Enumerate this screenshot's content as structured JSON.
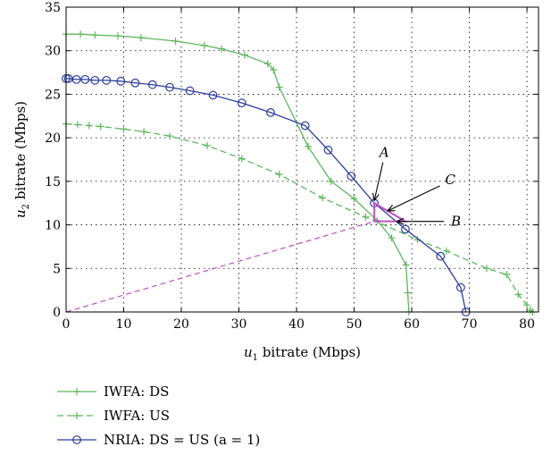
{
  "chart_data": {
    "type": "line",
    "xlabel_var": "u",
    "xlabel_sub": "1",
    "xlabel_rest": " bitrate (Mbps)",
    "ylabel_var": "u",
    "ylabel_sub": "2",
    "ylabel_rest": " bitrate (Mbps)",
    "xlim": [
      0,
      82
    ],
    "ylim": [
      0,
      35
    ],
    "xticks": [
      0,
      10,
      20,
      30,
      40,
      50,
      60,
      70,
      80
    ],
    "yticks": [
      0,
      5,
      10,
      15,
      20,
      25,
      30,
      35
    ],
    "grid": true,
    "legend_position": "below",
    "series": [
      {
        "name": "IWFA: DS",
        "color": "#5cb85c",
        "dash": "solid",
        "marker": "plus",
        "x": [
          0,
          2.5,
          5,
          9,
          13,
          19,
          24,
          27,
          31,
          35,
          36,
          37,
          42,
          46,
          50,
          54,
          56.5,
          59,
          59.3,
          59.5
        ],
        "y": [
          31.9,
          31.9,
          31.8,
          31.7,
          31.5,
          31.1,
          30.6,
          30.2,
          29.5,
          28.5,
          27.8,
          25.8,
          19,
          15,
          13,
          10.5,
          8.5,
          5.4,
          2.2,
          0
        ]
      },
      {
        "name": "IWFA: US",
        "color": "#5cb85c",
        "dash": "dashed",
        "marker": "plus",
        "x": [
          0,
          2,
          4,
          6,
          10,
          13.5,
          18,
          24.5,
          30.5,
          37,
          44.5,
          52,
          61,
          66,
          73,
          76.5,
          78.5,
          80,
          80.6,
          81
        ],
        "y": [
          21.6,
          21.5,
          21.4,
          21.3,
          21,
          20.7,
          20.2,
          19.1,
          17.6,
          15.8,
          13.1,
          10.9,
          8.3,
          7,
          5,
          4.3,
          2,
          0.8,
          0.2,
          0
        ]
      },
      {
        "name": "NRIA: DS = US (a = 1)",
        "color": "#2b3c9c",
        "dash": "solid",
        "marker": "circle",
        "x": [
          0,
          0.4,
          1.8,
          3.3,
          5,
          7,
          9.5,
          12,
          15,
          18,
          21.5,
          25.5,
          30.5,
          35.5,
          41.5,
          45.5,
          49.5,
          53.5,
          58.9,
          65,
          68.5,
          69.4
        ],
        "y": [
          26.8,
          26.8,
          26.7,
          26.7,
          26.6,
          26.6,
          26.5,
          26.3,
          26.1,
          25.8,
          25.4,
          24.9,
          24,
          22.9,
          21.4,
          18.6,
          15.6,
          12.5,
          9.5,
          6.4,
          2.8,
          0
        ]
      }
    ],
    "reference_line": {
      "color": "#c050c0",
      "x": [
        0,
        53.5
      ],
      "y": [
        0,
        10.4
      ]
    },
    "triangle": {
      "color": "#c050c0",
      "points": [
        [
          53.5,
          10.4
        ],
        [
          53.5,
          12.5
        ],
        [
          58.9,
          10.4
        ]
      ]
    },
    "annotations": [
      {
        "text": "A",
        "x": 55,
        "y": 17.8,
        "arrow_to": [
          53.5,
          12.8
        ]
      },
      {
        "text": "C",
        "x": 65.5,
        "y": 14.9,
        "arrow_to": [
          55.8,
          11.6
        ]
      },
      {
        "text": "B",
        "x": 66.5,
        "y": 10.4,
        "arrow_to": [
          57.4,
          10.4
        ]
      }
    ]
  },
  "legend": {
    "items": [
      {
        "label": "IWFA: DS",
        "color": "#5cb85c",
        "dash": "solid",
        "marker": "plus"
      },
      {
        "label": "IWFA: US",
        "color": "#5cb85c",
        "dash": "dashed",
        "marker": "plus"
      },
      {
        "label": "NRIA: DS = US (a = 1)",
        "color": "#2b3c9c",
        "dash": "solid",
        "marker": "circle"
      }
    ]
  }
}
